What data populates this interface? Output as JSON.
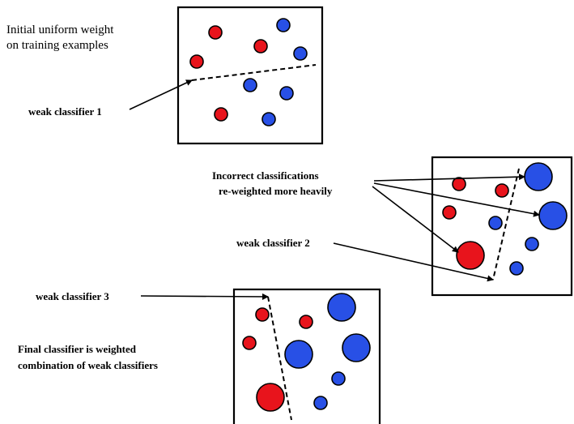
{
  "labels": {
    "initial_weight_line1": "Initial uniform weight",
    "initial_weight_line2": "on training examples",
    "weak_classifier_1": "weak classifier 1",
    "incorrect_line1": "Incorrect classifications",
    "incorrect_line2": "re-weighted more heavily",
    "weak_classifier_2": "weak classifier 2",
    "weak_classifier_3": "weak classifier 3",
    "final_line1": "Final classifier is weighted",
    "final_line2": "combination of weak classifiers"
  },
  "colors": {
    "positive_class": "#e8141c",
    "negative_class": "#2850e6",
    "outline": "#000000"
  }
}
